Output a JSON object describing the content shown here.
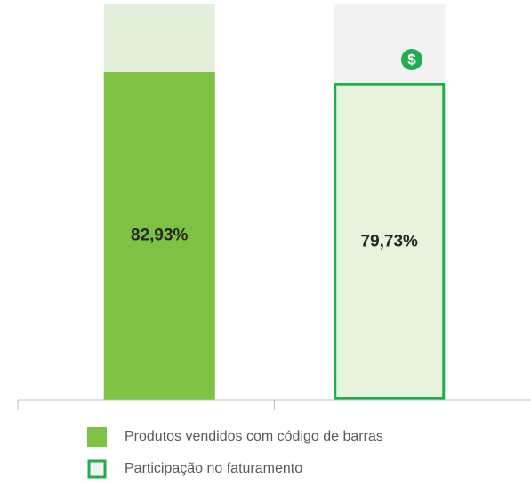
{
  "chart_data": {
    "type": "bar",
    "categories": [
      null,
      null
    ],
    "ylim": [
      0,
      100
    ],
    "series": [
      {
        "name": "Produtos vendidos com código de barras",
        "color": "#7dc242",
        "track_color": "#e3efd9",
        "style": "filled",
        "values": [
          82.93,
          null
        ],
        "value_labels": [
          "82,93%",
          null
        ]
      },
      {
        "name": "Participação no faturamento",
        "color": "#1fad4f",
        "fill": "#e8f3dd",
        "track_color": "#f2f2f2",
        "style": "outlined",
        "values": [
          null,
          79.73
        ],
        "value_labels": [
          null,
          "79,73%"
        ]
      }
    ]
  }
}
